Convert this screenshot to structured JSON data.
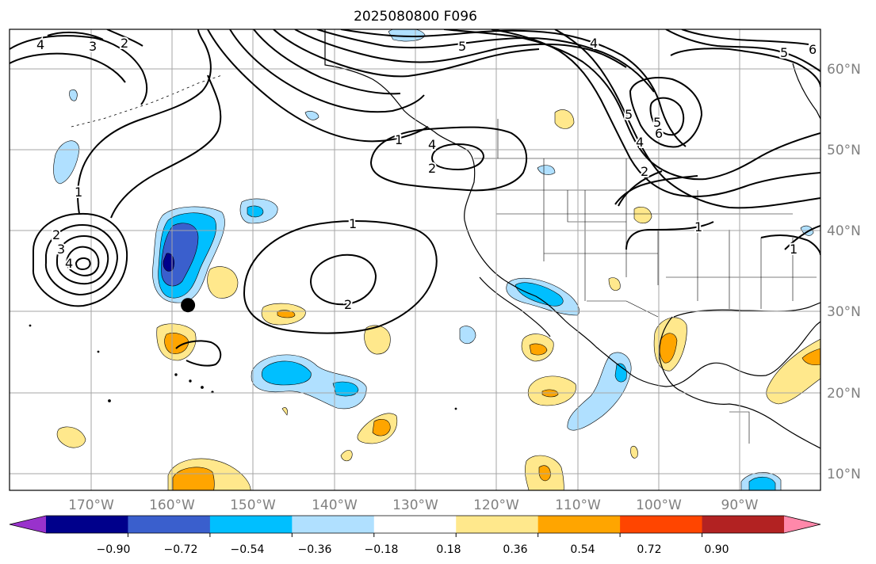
{
  "title": "2025080800 F096",
  "map": {
    "projection": "equirectangular",
    "lon_range": [
      -180,
      -80
    ],
    "lat_range": [
      7,
      64
    ],
    "gridlines": true,
    "lon_ticks": [
      "170°W",
      "160°W",
      "150°W",
      "140°W",
      "130°W",
      "120°W",
      "110°W",
      "100°W",
      "90°W"
    ],
    "lat_ticks": [
      "60°N",
      "50°N",
      "40°N",
      "30°N",
      "20°N",
      "10°N"
    ],
    "tick_label_color": "#808080",
    "marker": {
      "name": "point-marker",
      "lon": -158,
      "lat": 29.9
    }
  },
  "contours": {
    "color": "#000000",
    "labels": [
      {
        "text": "4"
      },
      {
        "text": "3"
      },
      {
        "text": "2"
      },
      {
        "text": "5"
      },
      {
        "text": "6"
      },
      {
        "text": "4"
      },
      {
        "text": "5"
      },
      {
        "text": "5"
      },
      {
        "text": "4"
      },
      {
        "text": "2"
      },
      {
        "text": "1"
      },
      {
        "text": "1"
      },
      {
        "text": "2"
      },
      {
        "text": "1"
      },
      {
        "text": "1"
      },
      {
        "text": "2"
      },
      {
        "text": "3"
      },
      {
        "text": "4"
      },
      {
        "text": "1"
      },
      {
        "text": "2"
      },
      {
        "text": "4"
      },
      {
        "text": "6"
      },
      {
        "text": "5"
      }
    ]
  },
  "colorbar": {
    "ticks": [
      "−0.90",
      "−0.72",
      "−0.54",
      "−0.36",
      "−0.18",
      "0.18",
      "0.36",
      "0.54",
      "0.72",
      "0.90"
    ],
    "colors": [
      "#9932cc",
      "#00008b",
      "#3a5fcd",
      "#00bfff",
      "#b0e0ff",
      "#ffffff",
      "#ffe88c",
      "#ffa500",
      "#ff4500",
      "#b22222",
      "#ff88aa"
    ]
  }
}
